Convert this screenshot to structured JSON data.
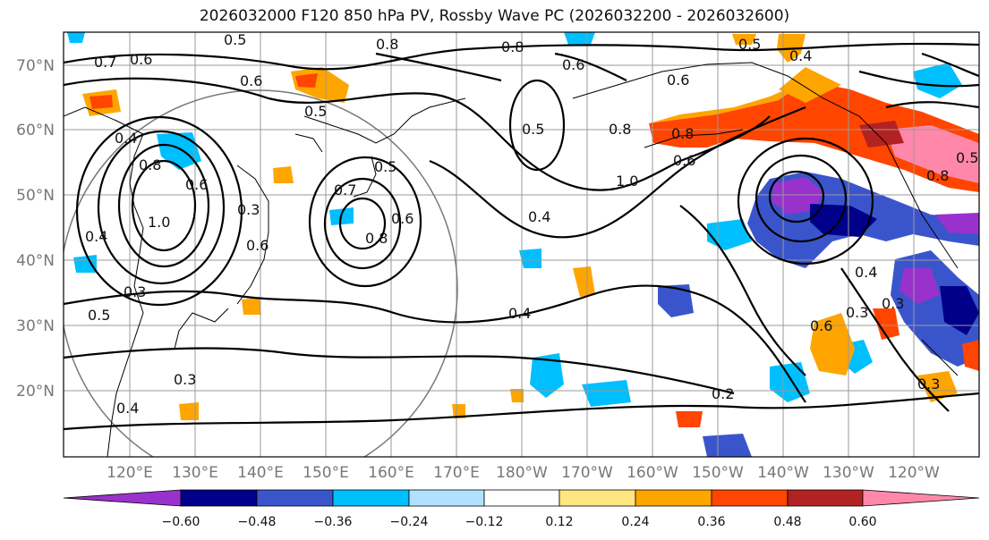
{
  "title": "2026032000 F120 850 hPa PV, Rossby Wave PC (2026032200 - 2026032600)",
  "map": {
    "lat_labels": [
      "70°N",
      "60°N",
      "50°N",
      "40°N",
      "30°N",
      "20°N"
    ],
    "lon_labels": [
      "120°E",
      "130°E",
      "140°E",
      "150°E",
      "160°E",
      "170°E",
      "180°W",
      "170°W",
      "160°W",
      "150°W",
      "140°W",
      "130°W",
      "120°W"
    ],
    "contour_labels": [
      "0.7",
      "0.6",
      "0.6",
      "0.5",
      "0.5",
      "0.8",
      "0.8",
      "0.6",
      "0.6",
      "0.5",
      "0.4",
      "0.4",
      "0.8",
      "1.0",
      "0.6",
      "0.3",
      "0.6",
      "0.7",
      "0.5",
      "0.6",
      "0.8",
      "0.5",
      "0.4",
      "0.3",
      "0.5",
      "0.4",
      "0.3",
      "0.4",
      "0.4",
      "0.2",
      "0.8",
      "1.0",
      "0.6",
      "0.8",
      "0.4",
      "0.6",
      "0.3",
      "0.3",
      "0.3",
      "0.8",
      "0.5"
    ]
  },
  "colorbar": {
    "ticks": [
      "−0.60",
      "−0.48",
      "−0.36",
      "−0.24",
      "−0.12",
      "0.12",
      "0.24",
      "0.36",
      "0.48",
      "0.60"
    ],
    "colors": [
      "#9932CC",
      "#00008B",
      "#3A55CC",
      "#00BFFF",
      "#B0E2FF",
      "#FFFFFF",
      "#FFE680",
      "#FFA500",
      "#FF4500",
      "#B22222",
      "#FF88AA"
    ]
  }
}
